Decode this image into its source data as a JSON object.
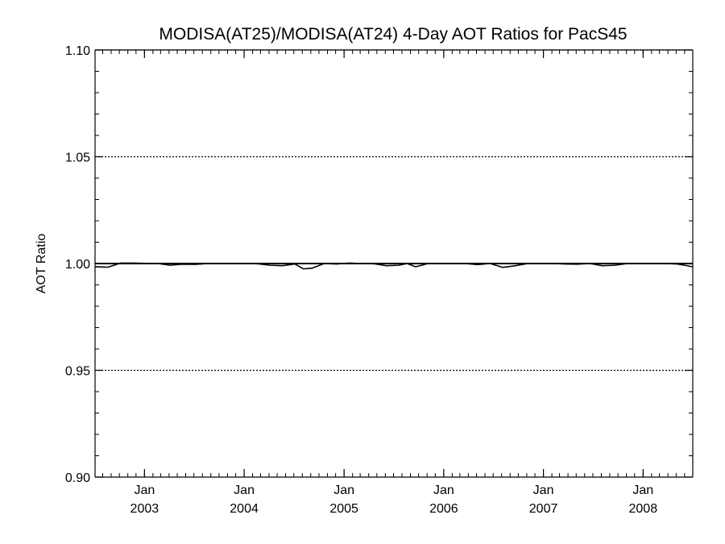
{
  "chart_data": {
    "type": "line",
    "title": "MODISA(AT25)/MODISA(AT24) 4-Day AOT Ratios for PacS45",
    "xlabel": "",
    "ylabel": "AOT Ratio",
    "xlim": [
      "2002-07-04",
      "2008-07-01"
    ],
    "ylim": [
      0.9,
      1.1
    ],
    "y_ticks": [
      {
        "value": 0.9,
        "label": "0.90"
      },
      {
        "value": 0.95,
        "label": "0.95"
      },
      {
        "value": 1.0,
        "label": "1.00"
      },
      {
        "value": 1.05,
        "label": "1.05"
      },
      {
        "value": 1.1,
        "label": "1.10"
      }
    ],
    "y_gridlines": [
      0.95,
      1.0,
      1.05,
      1.1
    ],
    "x_ticks": [
      {
        "date": "2003-01-01",
        "month": "Jan",
        "year": "2003"
      },
      {
        "date": "2004-01-01",
        "month": "Jan",
        "year": "2004"
      },
      {
        "date": "2005-01-01",
        "month": "Jan",
        "year": "2005"
      },
      {
        "date": "2006-01-01",
        "month": "Jan",
        "year": "2006"
      },
      {
        "date": "2007-01-01",
        "month": "Jan",
        "year": "2007"
      },
      {
        "date": "2008-01-01",
        "month": "Jan",
        "year": "2008"
      }
    ],
    "reference_line": 1.0,
    "series": [
      {
        "color": "#000000",
        "x": [
          "2002-07-04",
          "2002-08-20",
          "2002-10-05",
          "2002-11-20",
          "2003-01-05",
          "2003-02-20",
          "2003-04-05",
          "2003-05-20",
          "2003-07-05",
          "2003-08-20",
          "2003-10-05",
          "2003-11-20",
          "2004-01-05",
          "2004-02-20",
          "2004-04-05",
          "2004-05-20",
          "2004-07-05",
          "2004-08-05",
          "2004-09-05",
          "2004-10-20",
          "2004-12-05",
          "2005-01-20",
          "2005-03-05",
          "2005-04-20",
          "2005-06-05",
          "2005-07-20",
          "2005-08-20",
          "2005-09-20",
          "2005-11-05",
          "2005-12-20",
          "2006-02-05",
          "2006-03-20",
          "2006-05-05",
          "2006-06-20",
          "2006-08-05",
          "2006-09-20",
          "2006-11-05",
          "2006-12-20",
          "2007-02-05",
          "2007-03-20",
          "2007-05-05",
          "2007-06-20",
          "2007-08-05",
          "2007-09-20",
          "2007-11-05",
          "2007-12-20",
          "2008-02-05",
          "2008-03-20",
          "2008-05-05",
          "2008-06-01",
          "2008-07-01"
        ],
        "y": [
          0.9985,
          0.9983,
          1.0002,
          1.0002,
          1.0001,
          1.0,
          0.9992,
          0.9997,
          0.9996,
          1.0,
          1.0,
          1.0,
          1.0,
          0.9999,
          0.9992,
          0.999,
          0.9998,
          0.9975,
          0.9978,
          1.0,
          0.9998,
          1.0002,
          1.0,
          0.9999,
          0.999,
          0.9992,
          1.0,
          0.9985,
          1.0,
          1.0,
          1.0,
          1.0,
          0.9995,
          1.0,
          0.9982,
          0.999,
          1.0,
          1.0,
          1.0,
          0.9998,
          0.9997,
          1.0,
          0.999,
          0.9992,
          1.0,
          1.0,
          1.0,
          1.0,
          0.9998,
          0.9992,
          0.9985
        ]
      }
    ]
  }
}
